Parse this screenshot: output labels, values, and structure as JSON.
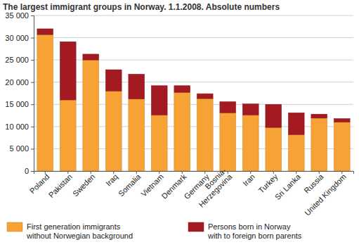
{
  "chart_data": {
    "type": "bar",
    "stacked": true,
    "grid": true,
    "legend": "bottom",
    "title": "The largest immigrant groups in Norway. 1.1.2008. Absolute numbers",
    "categories": [
      "Poland",
      "Pakistan",
      "Sweden",
      "Iraq",
      "Somalia",
      "Vietnam",
      "Denmark",
      "Germany",
      "Bosnia-\nHerzegovina",
      "Iran",
      "Turkey",
      "Sri Lanka",
      "Russia",
      "United Kingdom"
    ],
    "series": [
      {
        "name": "First generation immigrants\nwithout Norwegian background",
        "color": "#f6a235",
        "values": [
          30700,
          16000,
          25000,
          18000,
          16200,
          12600,
          17700,
          16300,
          13100,
          12600,
          9800,
          8200,
          11900,
          11000
        ]
      },
      {
        "name": "Persons born in Norway\nwith to foreign born parents",
        "color": "#a31a20",
        "values": [
          1300,
          13100,
          1300,
          4800,
          5600,
          6600,
          1500,
          1100,
          2500,
          2500,
          5200,
          4900,
          900,
          800
        ]
      }
    ],
    "ylim": [
      0,
      35000
    ],
    "yticks": [
      0,
      {
        "value": 5000,
        "label": "5 000"
      },
      {
        "value": 10000,
        "label": "10 000"
      },
      {
        "value": 15000,
        "label": "15 000"
      },
      {
        "value": 20000,
        "label": "20 000"
      },
      {
        "value": 25000,
        "label": "25 000"
      },
      {
        "value": 30000,
        "label": "30 000"
      },
      {
        "value": 35000,
        "label": "35 000"
      }
    ]
  }
}
